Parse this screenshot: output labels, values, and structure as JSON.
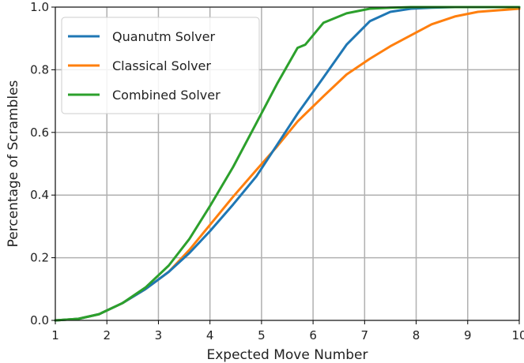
{
  "chart_data": {
    "type": "line",
    "title": "",
    "xlabel": "Expected Move Number",
    "ylabel": "Percentage of Scrambles",
    "xlim": [
      1,
      10
    ],
    "ylim": [
      0,
      1.0
    ],
    "grid": true,
    "legend_position": "top-left",
    "x_ticks": [
      1,
      2,
      3,
      4,
      5,
      6,
      7,
      8,
      9,
      10
    ],
    "x_tick_labels": [
      "1",
      "2",
      "3",
      "4",
      "5",
      "6",
      "7",
      "8",
      "9",
      "10"
    ],
    "y_ticks": [
      0,
      0.2,
      0.4,
      0.6,
      0.8,
      1.0
    ],
    "y_tick_labels": [
      "0.0",
      "0.2",
      "0.4",
      "0.6",
      "0.8",
      "1.0"
    ],
    "series": [
      {
        "name": "Quanutm Solver",
        "color": "#1f77b4",
        "x": [
          1.0,
          1.45,
          1.85,
          2.3,
          2.75,
          3.2,
          3.6,
          4.0,
          4.45,
          4.9,
          5.3,
          5.7,
          6.2,
          6.65,
          7.1,
          7.5,
          7.9,
          8.3,
          8.75,
          9.2,
          9.6,
          10.0
        ],
        "y": [
          0.0,
          0.005,
          0.02,
          0.055,
          0.1,
          0.155,
          0.215,
          0.285,
          0.37,
          0.46,
          0.56,
          0.66,
          0.775,
          0.88,
          0.955,
          0.985,
          0.995,
          0.998,
          1.0,
          1.0,
          1.0,
          1.0
        ]
      },
      {
        "name": "Classical Solver",
        "color": "#ff7f0e",
        "x": [
          1.0,
          1.45,
          1.85,
          2.3,
          2.75,
          3.2,
          3.6,
          4.0,
          4.45,
          4.9,
          5.3,
          5.7,
          6.2,
          6.65,
          7.1,
          7.5,
          7.9,
          8.3,
          8.75,
          9.2,
          9.6,
          10.0
        ],
        "y": [
          0.0,
          0.005,
          0.02,
          0.055,
          0.1,
          0.155,
          0.225,
          0.305,
          0.395,
          0.48,
          0.555,
          0.635,
          0.715,
          0.785,
          0.835,
          0.875,
          0.91,
          0.945,
          0.97,
          0.985,
          0.99,
          0.995
        ]
      },
      {
        "name": "Combined Solver",
        "color": "#2ca02c",
        "x": [
          1.0,
          1.45,
          1.85,
          2.3,
          2.75,
          3.2,
          3.6,
          4.0,
          4.45,
          4.9,
          5.3,
          5.7,
          5.85,
          6.2,
          6.65,
          7.1,
          7.5,
          7.9,
          8.3,
          8.75,
          9.2,
          9.6,
          10.0
        ],
        "y": [
          0.0,
          0.005,
          0.02,
          0.055,
          0.105,
          0.175,
          0.26,
          0.365,
          0.49,
          0.63,
          0.755,
          0.87,
          0.88,
          0.95,
          0.98,
          0.995,
          0.998,
          1.0,
          1.0,
          1.0,
          1.0,
          1.0,
          1.0
        ]
      }
    ]
  }
}
